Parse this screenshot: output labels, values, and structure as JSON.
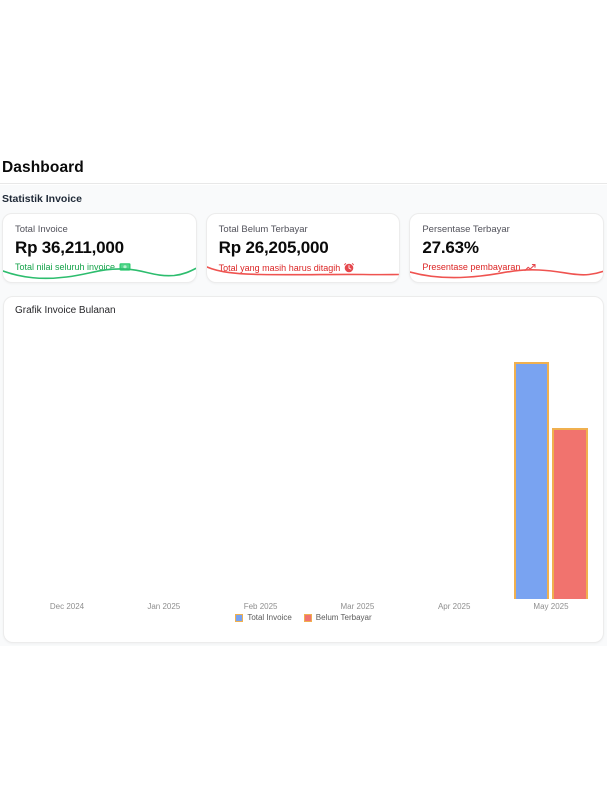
{
  "page": {
    "title": "Dashboard"
  },
  "stats": {
    "section_title": "Statistik Invoice",
    "cards": [
      {
        "label": "Total Invoice",
        "value": "Rp 36,211,000",
        "subtitle": "Total nilai seluruh invoice",
        "icon": "money-banknote-icon",
        "accent_color": "#16a34a",
        "spark_color": "#2dbd6e"
      },
      {
        "label": "Total Belum Terbayar",
        "value": "Rp 26,205,000",
        "subtitle": "Total yang masih harus ditagih",
        "icon": "alarm-clock-icon",
        "accent_color": "#dc2626",
        "spark_color": "#ef5350"
      },
      {
        "label": "Persentase Terbayar",
        "value": "27.63%",
        "subtitle": "Presentase pembayaran",
        "icon": "trend-up-icon",
        "accent_color": "#dc2626",
        "spark_color": "#ef5350"
      }
    ]
  },
  "chart": {
    "card_title": "Grafik Invoice Bulanan"
  },
  "chart_data": {
    "type": "bar",
    "title": "Grafik Invoice Bulanan",
    "categories": [
      "Dec 2024",
      "Jan 2025",
      "Feb 2025",
      "Mar 2025",
      "Apr 2025",
      "May 2025"
    ],
    "series": [
      {
        "name": "Total Invoice",
        "values": [
          null,
          null,
          null,
          null,
          null,
          36211000
        ],
        "fill": "#79a3f1",
        "border": "#f0b04f"
      },
      {
        "name": "Belum Terbayar",
        "values": [
          null,
          null,
          null,
          null,
          null,
          26205000
        ],
        "fill": "#f1736e",
        "border": "#f0b04f"
      }
    ],
    "xlabel": "",
    "ylabel": "",
    "ylim": [
      0,
      41000000
    ],
    "grid": false,
    "legend_position": "bottom"
  }
}
